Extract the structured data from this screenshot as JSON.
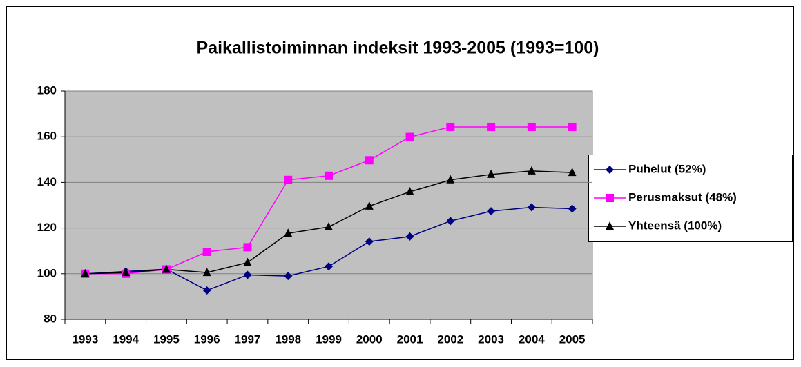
{
  "chart_data": {
    "type": "line",
    "title": "Paikallistoiminnan indeksit 1993-2005  (1993=100)",
    "categories": [
      "1993",
      "1994",
      "1995",
      "1996",
      "1997",
      "1998",
      "1999",
      "2000",
      "2001",
      "2002",
      "2003",
      "2004",
      "2005"
    ],
    "series": [
      {
        "name": "Puhelut (52%)",
        "color": "#000080",
        "marker": "diamond",
        "values": [
          100,
          101,
          102,
          92.7,
          99.5,
          99,
          103.2,
          114.1,
          116.3,
          123.1,
          127.4,
          129.1,
          128.5
        ]
      },
      {
        "name": "Perusmaksut (48%)",
        "color": "#ff00ff",
        "marker": "square",
        "values": [
          100,
          100,
          101.9,
          109.6,
          111.6,
          141.1,
          142.9,
          149.7,
          159.9,
          164.3,
          164.3,
          164.3,
          164.3
        ]
      },
      {
        "name": "Yhteensä (100%)",
        "color": "#000000",
        "marker": "triangle",
        "values": [
          100,
          100.5,
          101.9,
          100.5,
          104.9,
          117.7,
          120.5,
          129.6,
          135.9,
          141.1,
          143.5,
          145,
          144.3
        ]
      }
    ],
    "ylim": [
      80,
      180
    ],
    "yticks": [
      80,
      100,
      120,
      140,
      160,
      180
    ],
    "grid": true,
    "legend": "right"
  }
}
